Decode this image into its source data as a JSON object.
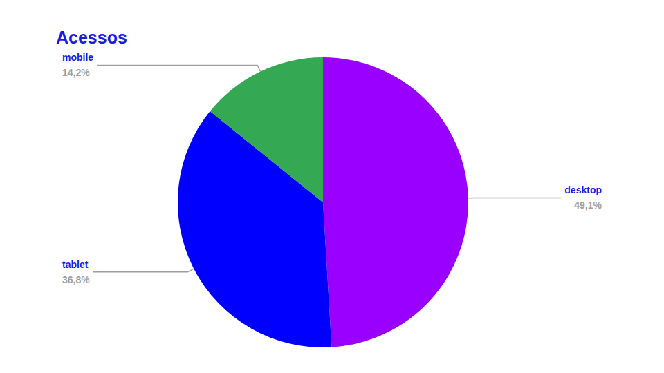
{
  "chart_data": {
    "type": "pie",
    "title": "Acessos",
    "categories": [
      "desktop",
      "tablet",
      "mobile"
    ],
    "values": [
      49.1,
      36.8,
      14.2
    ],
    "value_labels": [
      "49,1%",
      "36,8%",
      "14,2%"
    ],
    "colors": [
      "#9900ff",
      "#0000ff",
      "#34a853"
    ],
    "data_labels": true
  }
}
